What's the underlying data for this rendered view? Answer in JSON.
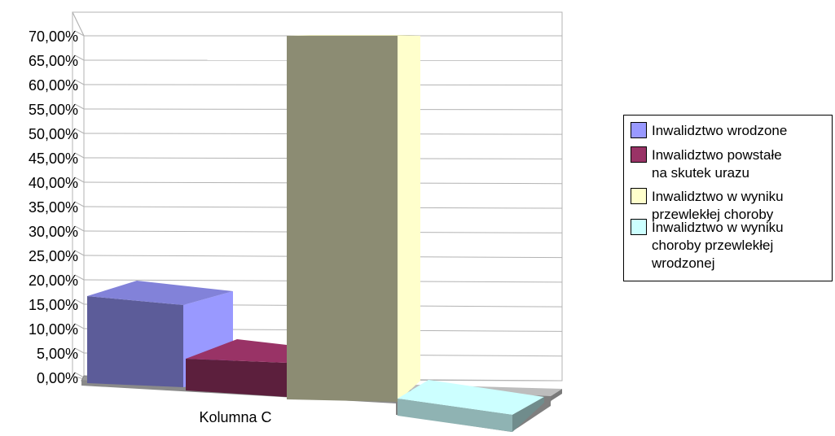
{
  "chart_data": {
    "type": "bar",
    "categories": [
      "Kolumna C"
    ],
    "series": [
      {
        "name": "Inwalidztwo wrodzone",
        "values": [
          0.2
        ],
        "color": "#9999ff"
      },
      {
        "name": "Inwalidztwo powstałe na skutek urazu",
        "values": [
          0.09
        ],
        "color": "#993366"
      },
      {
        "name": "Inwalidztwo w wyniku przewlekłej choroby",
        "values": [
          0.7
        ],
        "color": "#ffffcc"
      },
      {
        "name": "Inwalidztwo w wyniku choroby przewlekłej wrodzonej",
        "values": [
          0.01
        ],
        "color": "#ccffff"
      }
    ],
    "ylim": [
      0,
      0.7
    ],
    "yticks": [
      "0,00%",
      "5,00%",
      "10,00%",
      "15,00%",
      "20,00%",
      "25,00%",
      "30,00%",
      "35,00%",
      "40,00%",
      "45,00%",
      "50,00%",
      "55,00%",
      "60,00%",
      "65,00%",
      "70,00%"
    ],
    "grid": true,
    "legend_position": "right",
    "style": "3d"
  },
  "legend": {
    "items": [
      {
        "label": "Inwalidztwo wrodzone",
        "color": "#9999ff"
      },
      {
        "label": "Inwalidztwo powstałe\nna skutek urazu",
        "color": "#993366"
      },
      {
        "label": "Inwalidztwo w wyniku\nprzewlekłej choroby",
        "color": "#ffffcc"
      },
      {
        "label": "Inwalidztwo w wyniku\nchoroby przewlekłej\nwrodzonej",
        "color": "#ccffff"
      }
    ]
  }
}
